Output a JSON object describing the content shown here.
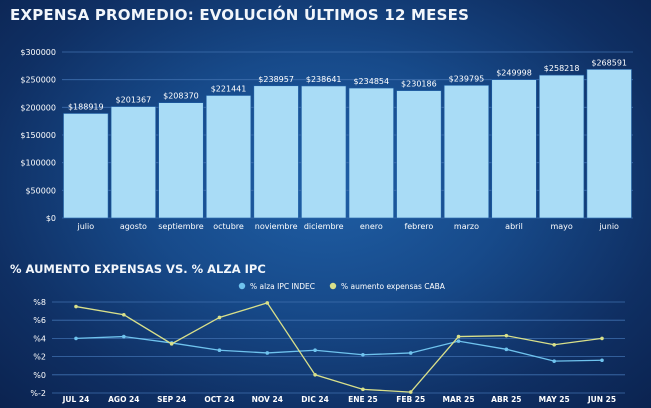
{
  "colors": {
    "bar_fill": "#a9dcf6",
    "bar_stroke": "#1f5fa6",
    "grid": "#3f6fae",
    "series_ipc": "#6fc3ee",
    "series_expensas": "#d9e08a"
  },
  "chart_data": [
    {
      "type": "bar",
      "title": "EXPENSA PROMEDIO: EVOLUCIÓN ÚLTIMOS 12 MESES",
      "categories": [
        "julio",
        "agosto",
        "septiembre",
        "octubre",
        "noviembre",
        "diciembre",
        "enero",
        "febrero",
        "marzo",
        "abril",
        "mayo",
        "junio"
      ],
      "values": [
        188919,
        201367,
        208370,
        221441,
        238957,
        238641,
        234854,
        230186,
        239795,
        249998,
        258218,
        268591
      ],
      "data_labels": [
        "$188919",
        "$201367",
        "$208370",
        "$221441",
        "$238957",
        "$238641",
        "$234854",
        "$230186",
        "$239795",
        "$249998",
        "$258218",
        "$268591"
      ],
      "y_ticks": [
        0,
        50000,
        100000,
        150000,
        200000,
        250000,
        300000
      ],
      "y_tick_labels": [
        "$0",
        "$50000",
        "$100000",
        "$150000",
        "$200000",
        "$250000",
        "$300000"
      ],
      "ylim": [
        0,
        300000
      ],
      "xlabel": "",
      "ylabel": "",
      "grid": true
    },
    {
      "type": "line",
      "title": "% AUMENTO EXPENSAS VS. % ALZA IPC",
      "categories": [
        "JUL 24",
        "AGO 24",
        "SEP 24",
        "OCT 24",
        "NOV 24",
        "DIC 24",
        "ENE 25",
        "FEB 25",
        "MAR 25",
        "ABR 25",
        "MAY 25",
        "JUN 25"
      ],
      "series": [
        {
          "name": "% alza IPC INDEC",
          "values": [
            4.0,
            4.2,
            3.5,
            2.7,
            2.4,
            2.7,
            2.2,
            2.4,
            3.7,
            2.8,
            1.5,
            1.6
          ]
        },
        {
          "name": "% aumento expensas CABA",
          "values": [
            7.5,
            6.6,
            3.4,
            6.3,
            7.9,
            0.0,
            -1.6,
            -1.9,
            4.2,
            4.3,
            3.3,
            4.0
          ]
        }
      ],
      "y_ticks": [
        -2,
        0,
        2,
        4,
        6,
        8
      ],
      "y_tick_labels": [
        "%-2",
        "%0",
        "%2",
        "%4",
        "%6",
        "%8"
      ],
      "ylim": [
        -2,
        8
      ],
      "legend_position": "top-center",
      "xlabel": "",
      "ylabel": "",
      "grid": true
    }
  ]
}
